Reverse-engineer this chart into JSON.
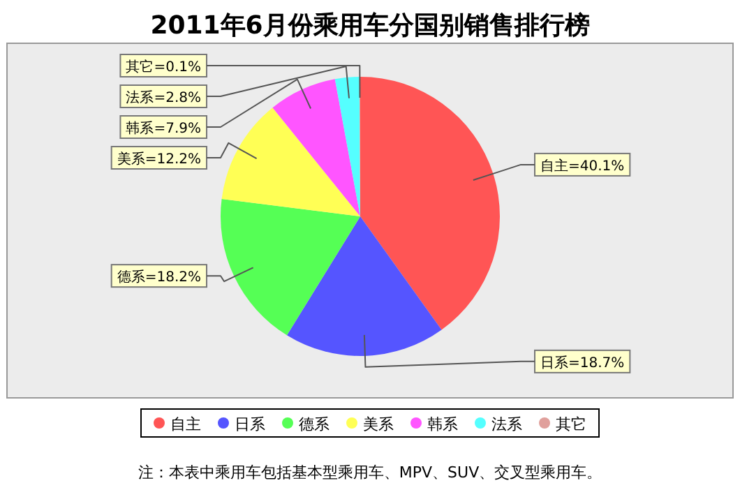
{
  "chart_data": {
    "type": "pie",
    "title": "2011年6月份乘用车分国别销售排行榜",
    "categories": [
      "自主",
      "日系",
      "德系",
      "美系",
      "韩系",
      "法系",
      "其它"
    ],
    "values": [
      40.1,
      18.7,
      18.2,
      12.2,
      7.9,
      2.8,
      0.1
    ],
    "colors": [
      "#ff5555",
      "#5555ff",
      "#55ff55",
      "#ffff55",
      "#ff55ff",
      "#55ffff",
      "#e0a09c"
    ],
    "value_labels": [
      "自主=40.1%",
      "日系=18.7%",
      "德系=18.2%",
      "美系=12.2%",
      "韩系=7.9%",
      "法系=2.8%",
      "其它=0.1%"
    ],
    "legend": "bottom",
    "annotations": [
      "注：本表中乘用车包括基本型乘用车、MPV、SUV、交叉型乘用车。"
    ]
  }
}
